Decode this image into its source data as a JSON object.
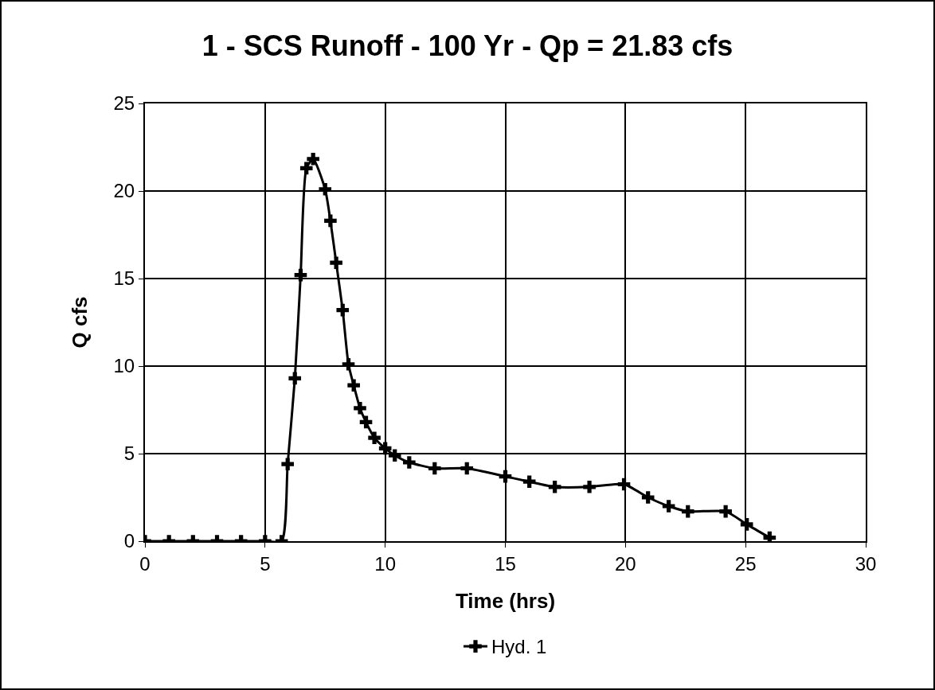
{
  "chart_data": {
    "type": "line",
    "title": "1 - SCS Runoff - 100 Yr - Qp = 21.83 cfs",
    "xlabel": "Time (hrs)",
    "ylabel": "Q cfs",
    "x": [
      0,
      1,
      2,
      3,
      4,
      5,
      5.69,
      5.94,
      6.24,
      6.48,
      6.72,
      7.0,
      7.5,
      7.72,
      7.96,
      8.23,
      8.47,
      8.69,
      8.95,
      9.2,
      9.55,
      10,
      10.4,
      11,
      12.06,
      13.4,
      15,
      16,
      17.06,
      18.5,
      19.94,
      20.94,
      21.8,
      22.6,
      24.17,
      25.05,
      26
    ],
    "series": [
      {
        "name": "Hyd. 1",
        "color": "#000000",
        "values": [
          0,
          0,
          0,
          0,
          0,
          0,
          0,
          4.4,
          9.3,
          15.2,
          21.3,
          21.83,
          20.1,
          18.3,
          15.9,
          13.2,
          10.1,
          8.9,
          7.6,
          6.8,
          5.9,
          5.3,
          4.9,
          4.5,
          4.16,
          4.16,
          3.7,
          3.4,
          3.1,
          3.1,
          3.25,
          2.5,
          2.0,
          1.7,
          1.7,
          0.96,
          0.2
        ]
      }
    ],
    "xlim": [
      0,
      30
    ],
    "xticks": [
      0,
      5,
      10,
      15,
      20,
      25,
      30
    ],
    "ylim": [
      0,
      25
    ],
    "yticks": [
      0,
      5,
      10,
      15,
      20,
      25
    ],
    "grid": true,
    "legend": "bottom",
    "marker": "cross",
    "line_style": "solid"
  }
}
